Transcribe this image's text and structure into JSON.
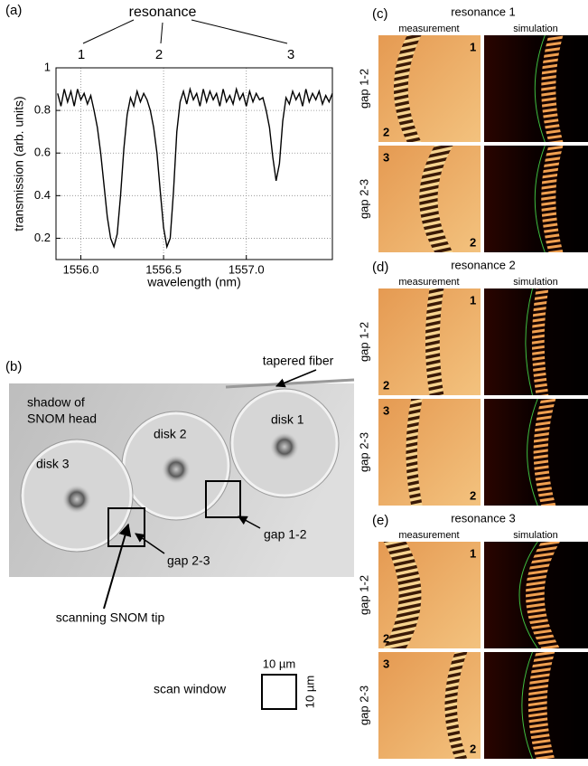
{
  "chart_data": {
    "type": "line",
    "panel_label": "(a)",
    "annotation": "resonance",
    "resonance_labels": [
      "1",
      "2",
      "3"
    ],
    "x_label": "wavelength (nm)",
    "y_label": "transmission (arb. units)",
    "x": [
      1555.86,
      1555.88,
      1555.9,
      1555.92,
      1555.94,
      1555.96,
      1555.98,
      1556.0,
      1556.02,
      1556.04,
      1556.06,
      1556.08,
      1556.1,
      1556.12,
      1556.14,
      1556.16,
      1556.18,
      1556.2,
      1556.22,
      1556.24,
      1556.26,
      1556.28,
      1556.3,
      1556.32,
      1556.34,
      1556.36,
      1556.38,
      1556.4,
      1556.42,
      1556.44,
      1556.46,
      1556.48,
      1556.5,
      1556.52,
      1556.54,
      1556.56,
      1556.58,
      1556.6,
      1556.62,
      1556.64,
      1556.66,
      1556.68,
      1556.7,
      1556.72,
      1556.74,
      1556.76,
      1556.78,
      1556.8,
      1556.82,
      1556.84,
      1556.86,
      1556.88,
      1556.9,
      1556.92,
      1556.94,
      1556.96,
      1556.98,
      1557.0,
      1557.02,
      1557.04,
      1557.06,
      1557.08,
      1557.1,
      1557.12,
      1557.14,
      1557.16,
      1557.18,
      1557.2,
      1557.22,
      1557.24,
      1557.26,
      1557.28,
      1557.3,
      1557.32,
      1557.34,
      1557.36,
      1557.38,
      1557.4,
      1557.42,
      1557.44,
      1557.46,
      1557.48,
      1557.5,
      1557.52
    ],
    "values": [
      0.88,
      0.82,
      0.9,
      0.84,
      0.89,
      0.82,
      0.9,
      0.85,
      0.88,
      0.83,
      0.87,
      0.8,
      0.72,
      0.6,
      0.45,
      0.3,
      0.2,
      0.16,
      0.22,
      0.4,
      0.62,
      0.78,
      0.86,
      0.82,
      0.89,
      0.84,
      0.88,
      0.85,
      0.8,
      0.72,
      0.6,
      0.42,
      0.25,
      0.16,
      0.2,
      0.42,
      0.7,
      0.84,
      0.89,
      0.83,
      0.9,
      0.85,
      0.88,
      0.82,
      0.9,
      0.84,
      0.89,
      0.85,
      0.88,
      0.82,
      0.9,
      0.84,
      0.87,
      0.83,
      0.9,
      0.85,
      0.88,
      0.82,
      0.89,
      0.84,
      0.88,
      0.85,
      0.86,
      0.8,
      0.72,
      0.58,
      0.47,
      0.55,
      0.75,
      0.86,
      0.83,
      0.89,
      0.85,
      0.88,
      0.82,
      0.9,
      0.84,
      0.88,
      0.85,
      0.89,
      0.83,
      0.87,
      0.84,
      0.88
    ],
    "color": "#000000",
    "xlim": [
      1555.85,
      1557.52
    ],
    "ylim": [
      0.1,
      1
    ],
    "xticks": [
      {
        "value": 1556,
        "label": "1556.0"
      },
      1556.5,
      {
        "value": 1557,
        "label": "1557.0"
      }
    ],
    "yticks": [
      0.2,
      0.4,
      0.6,
      0.8,
      1
    ],
    "grid": true
  },
  "photo": {
    "panel_label": "(b)",
    "fiber_label": "tapered fiber",
    "shadow_label": [
      "shadow of",
      "SNOM head"
    ],
    "disks": [
      "disk 1",
      "disk 2",
      "disk 3"
    ],
    "gaps": [
      "gap 1-2",
      "gap 2-3"
    ],
    "tip_label": "scanning SNOM tip",
    "scan_window": {
      "label": "scan window",
      "width": "10 µm",
      "height": "10 µm"
    }
  },
  "maps": [
    {
      "panel_label": "(c)",
      "title": "resonance 1",
      "columns": [
        "measurement",
        "simulation"
      ],
      "rows": [
        {
          "label": "gap 1-2",
          "marks": [
            "1",
            "2"
          ]
        },
        {
          "label": "gap 2-3",
          "marks": [
            "3",
            "2"
          ]
        }
      ]
    },
    {
      "panel_label": "(d)",
      "title": "resonance 2",
      "columns": [
        "measurement",
        "simulation"
      ],
      "rows": [
        {
          "label": "gap 1-2",
          "marks": [
            "1",
            "2"
          ]
        },
        {
          "label": "gap 2-3",
          "marks": [
            "3",
            "2"
          ]
        }
      ]
    },
    {
      "panel_label": "(e)",
      "title": "resonance 3",
      "columns": [
        "measurement",
        "simulation"
      ],
      "rows": [
        {
          "label": "gap 1-2",
          "marks": [
            "1",
            "2"
          ]
        },
        {
          "label": "gap 2-3",
          "marks": [
            "3",
            "2"
          ]
        }
      ]
    }
  ]
}
